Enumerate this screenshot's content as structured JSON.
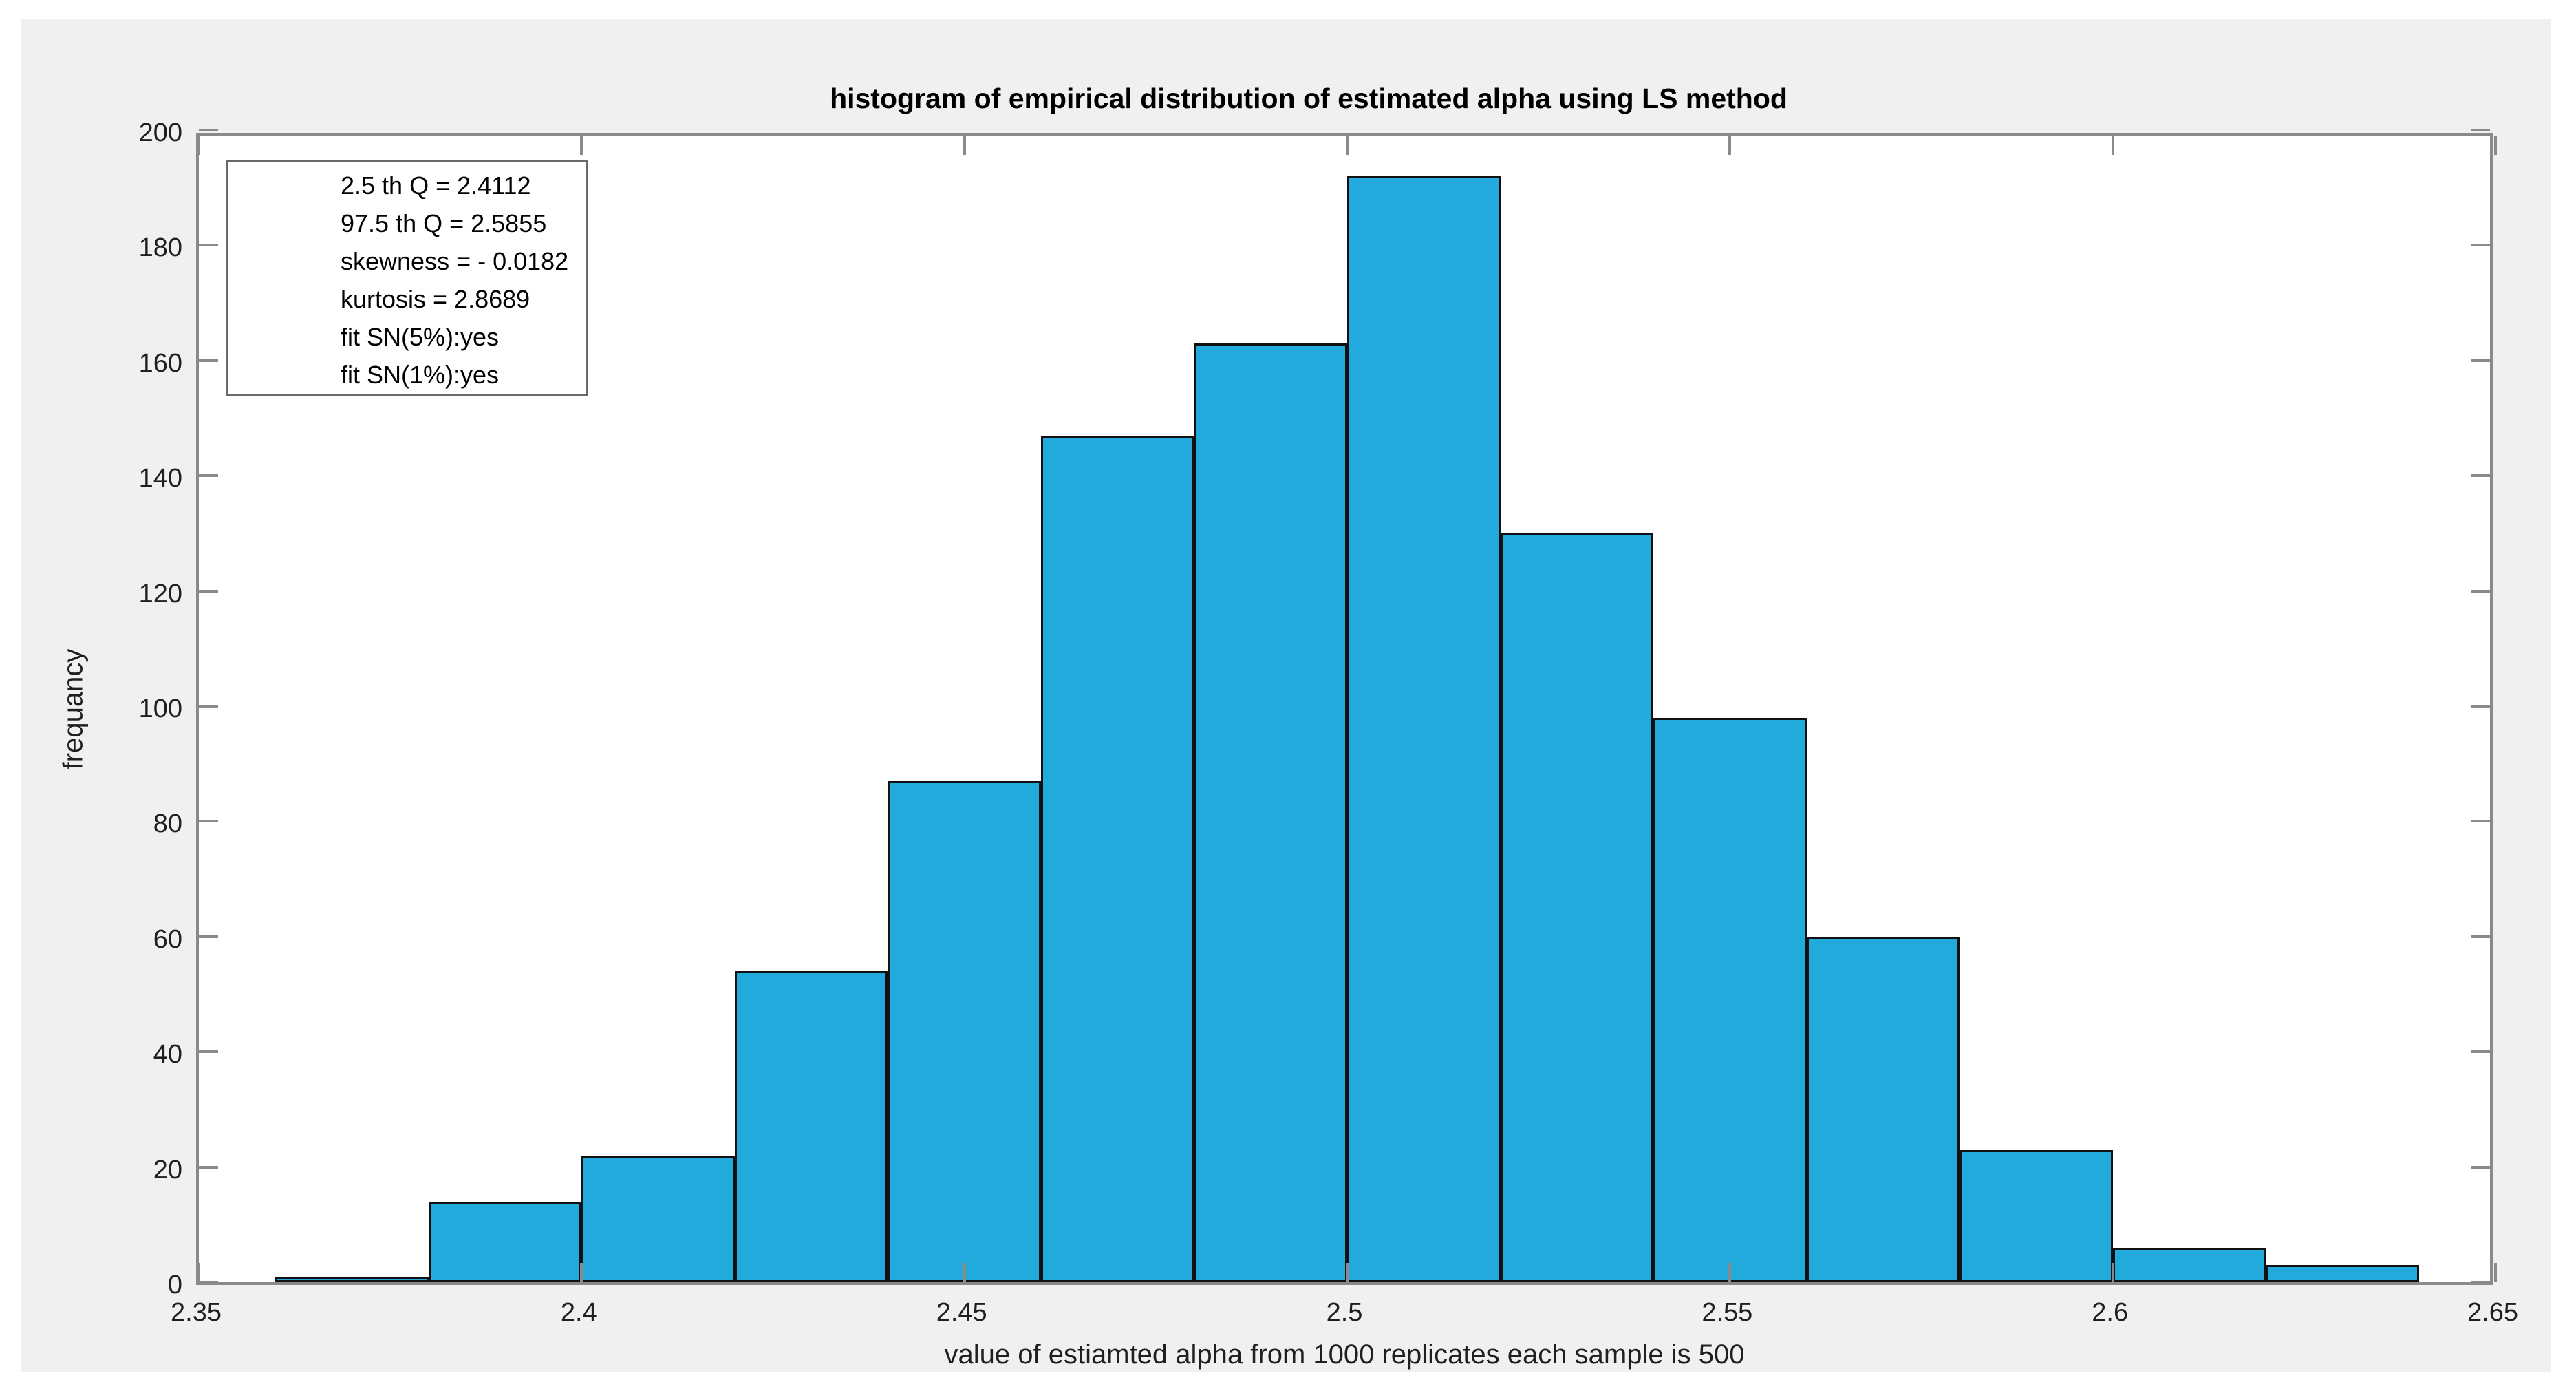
{
  "chart_data": {
    "type": "bar",
    "title": "histogram of empirical distribution of estimated alpha using LS method",
    "xlabel": "value of estiamted alpha from 1000 replicates each sample is 500",
    "ylabel": "frequancy",
    "bin_start": 2.36,
    "bin_width": 0.02,
    "bin_edges": [
      2.36,
      2.38,
      2.4,
      2.42,
      2.44,
      2.46,
      2.48,
      2.5,
      2.52,
      2.54,
      2.56,
      2.58,
      2.6,
      2.62,
      2.64
    ],
    "values": [
      1,
      14,
      22,
      54,
      87,
      147,
      163,
      192,
      130,
      98,
      60,
      23,
      6,
      3
    ],
    "xlim": [
      2.35,
      2.65
    ],
    "ylim": [
      0,
      200
    ],
    "x_ticks": [
      2.35,
      2.4,
      2.45,
      2.5,
      2.55,
      2.6,
      2.65
    ],
    "x_tick_labels": [
      "2.35",
      "2.4",
      "2.45",
      "2.5",
      "2.55",
      "2.6",
      "2.65"
    ],
    "y_ticks": [
      0,
      20,
      40,
      60,
      80,
      100,
      120,
      140,
      160,
      180,
      200
    ],
    "grid": false,
    "legend_position": "top-left",
    "annotation": {
      "lines": [
        "2.5 th Q = 2.4112",
        "97.5 th Q = 2.5855",
        "skewness = - 0.0182",
        "kurtosis = 2.8689",
        "fit SN(5%):yes",
        "fit SN(1%):yes"
      ]
    },
    "colors": {
      "bar_fill": "#23aadc",
      "bar_edge": "#111111",
      "axis": "#8a8a8a",
      "figure_background": "#f0f0f0",
      "plot_background": "#ffffff",
      "text": "#1f1f1f"
    }
  }
}
